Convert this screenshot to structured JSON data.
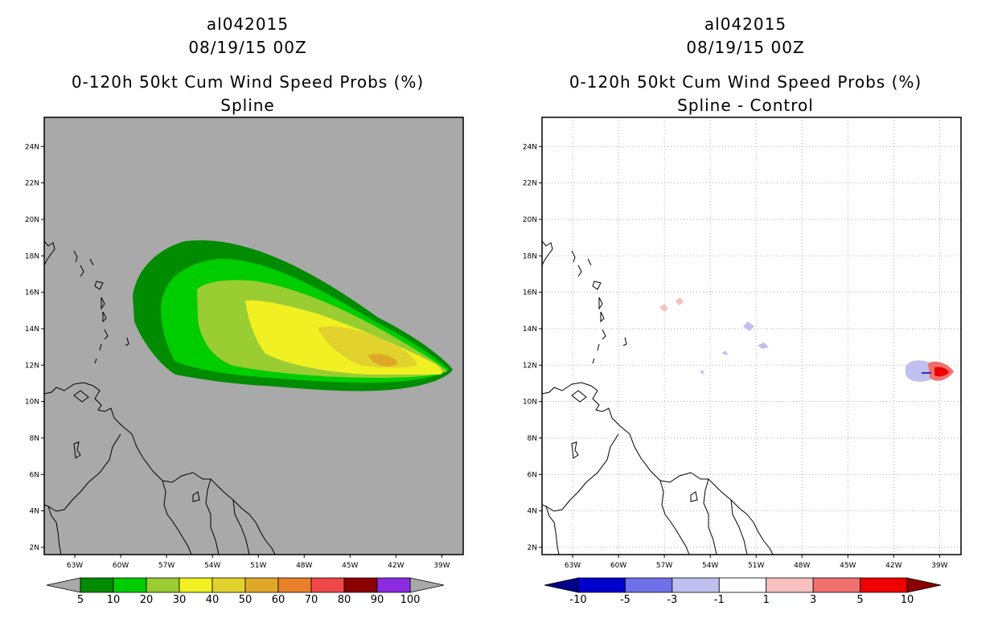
{
  "panels": [
    {
      "id": "left",
      "title_lines": [
        "al042015",
        "08/19/15 00Z",
        "0-120h 50kt Cum Wind Speed Probs (%)",
        "Spline"
      ],
      "background": "#a9a9a9",
      "colorbar": {
        "labels": [
          "5",
          "10",
          "20",
          "30",
          "40",
          "50",
          "60",
          "70",
          "80",
          "90",
          "100"
        ],
        "colors": [
          "#008b00",
          "#00cd00",
          "#9acd32",
          "#f0f022",
          "#e1d22d",
          "#e0a828",
          "#e8802a",
          "#f04848",
          "#8b0000",
          "#8a2be2"
        ],
        "end_color": "#a9a9a9"
      },
      "contours": [
        {
          "name": "prob-5",
          "color": "#008b00"
        },
        {
          "name": "prob-10",
          "color": "#00cd00"
        },
        {
          "name": "prob-20",
          "color": "#9acd32"
        },
        {
          "name": "prob-30",
          "color": "#f0f022"
        },
        {
          "name": "prob-40",
          "color": "#e1d22d"
        },
        {
          "name": "prob-50",
          "color": "#e0a828"
        }
      ]
    },
    {
      "id": "right",
      "title_lines": [
        "al042015",
        "08/19/15 00Z",
        "0-120h 50kt Cum Wind Speed Probs (%)",
        "Spline - Control"
      ],
      "background": "#ffffff",
      "colorbar": {
        "labels": [
          "-10",
          "-5",
          "-3",
          "-1",
          "1",
          "3",
          "5",
          "10"
        ],
        "colors": [
          "#0000cd",
          "#7070e8",
          "#c0c0f0",
          "#ffffff",
          "#f8c0c0",
          "#f07070",
          "#ee0000"
        ],
        "end_colors": [
          "#00008b",
          "#8b0000"
        ]
      },
      "diff_features": [
        {
          "name": "diff-positive-small",
          "color": "#f8c0c0"
        },
        {
          "name": "diff-negative-small",
          "color": "#c0c0f0"
        },
        {
          "name": "diff-negative-east",
          "color": "#c0c0f0"
        },
        {
          "name": "diff-positive-east",
          "color": "#f07070"
        },
        {
          "name": "diff-strong-positive-east",
          "color": "#ee0000"
        },
        {
          "name": "diff-strong-negative-line",
          "color": "#3030c0"
        }
      ]
    }
  ],
  "axes": {
    "x_labels": [
      "63W",
      "60W",
      "57W",
      "54W",
      "51W",
      "48W",
      "45W",
      "42W",
      "39W"
    ],
    "x_values": [
      -63,
      -60,
      -57,
      -54,
      -51,
      -48,
      -45,
      -42,
      -39
    ],
    "y_labels": [
      "24N",
      "22N",
      "20N",
      "18N",
      "16N",
      "14N",
      "12N",
      "10N",
      "8N",
      "6N",
      "4N",
      "2N"
    ],
    "y_values": [
      24,
      22,
      20,
      18,
      16,
      14,
      12,
      10,
      8,
      6,
      4,
      2
    ],
    "lon_range": [
      -65.0,
      -37.6
    ],
    "lat_range": [
      1.6,
      25.6
    ]
  }
}
